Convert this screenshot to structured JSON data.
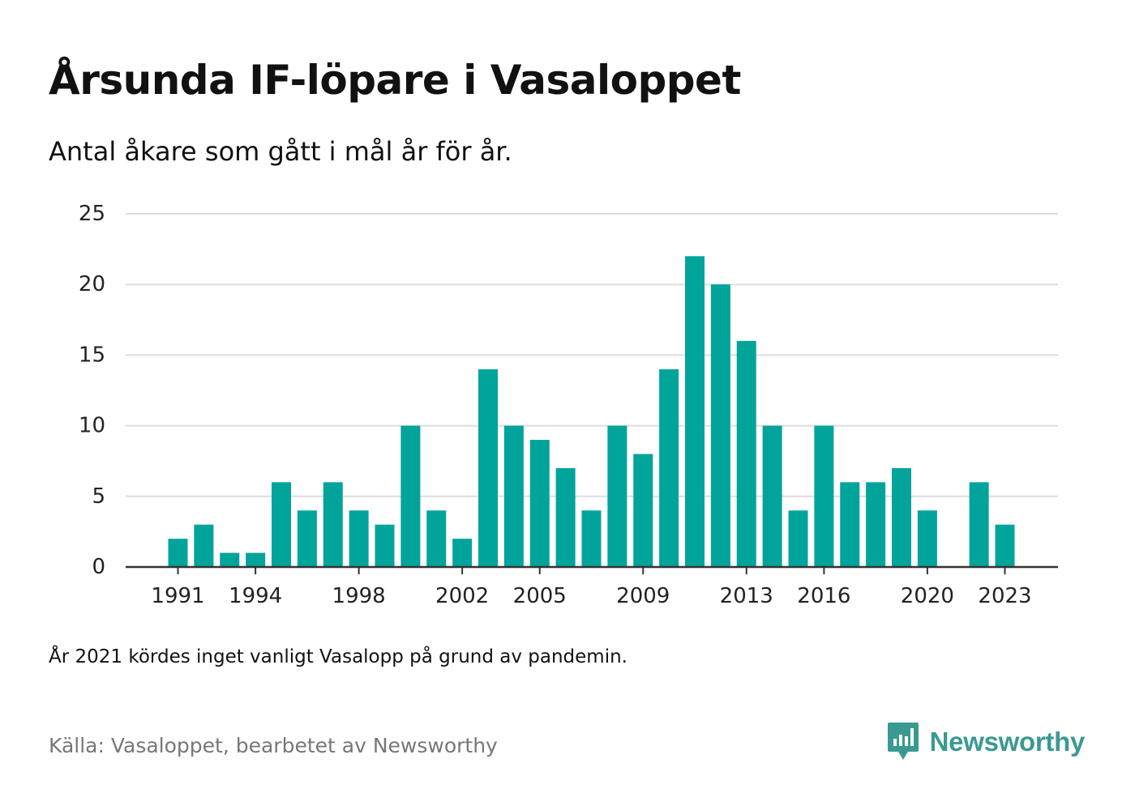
{
  "header": {
    "title": "Årsunda IF-löpare i Vasaloppet",
    "subtitle": "Antal åkare som gått i mål år för år."
  },
  "footer": {
    "note": "År 2021 kördes inget vanligt Vasalopp på grund av pandemin.",
    "source": "Källa: Vasaloppet, bearbetet av Newsworthy",
    "brand": "Newsworthy",
    "brand_icon": "newsworthy-logo-icon"
  },
  "colors": {
    "bar": "#00a49b",
    "grid": "#dddddd",
    "axis": "#333333",
    "brand": "#3a9a92",
    "source_text": "#777777"
  },
  "chart_data": {
    "type": "bar",
    "title": "Årsunda IF-löpare i Vasaloppet",
    "subtitle": "Antal åkare som gått i mål år för år.",
    "xlabel": "",
    "ylabel": "",
    "categories": [
      1991,
      1992,
      1993,
      1994,
      1995,
      1996,
      1997,
      1998,
      1999,
      2000,
      2001,
      2002,
      2003,
      2004,
      2005,
      2006,
      2007,
      2008,
      2009,
      2010,
      2011,
      2012,
      2013,
      2014,
      2015,
      2016,
      2017,
      2018,
      2019,
      2020,
      2021,
      2022,
      2023
    ],
    "values": [
      2,
      3,
      1,
      1,
      6,
      4,
      6,
      4,
      3,
      10,
      4,
      2,
      14,
      10,
      9,
      7,
      4,
      10,
      8,
      14,
      22,
      20,
      16,
      10,
      4,
      10,
      6,
      6,
      7,
      4,
      0,
      6,
      3
    ],
    "x_tick_labels": [
      "1991",
      "1994",
      "1998",
      "2002",
      "2005",
      "2009",
      "2013",
      "2016",
      "2020",
      "2023"
    ],
    "y_ticks": [
      0,
      5,
      10,
      15,
      20,
      25
    ],
    "ylim": [
      0,
      25
    ],
    "grid": true,
    "legend": "none"
  }
}
